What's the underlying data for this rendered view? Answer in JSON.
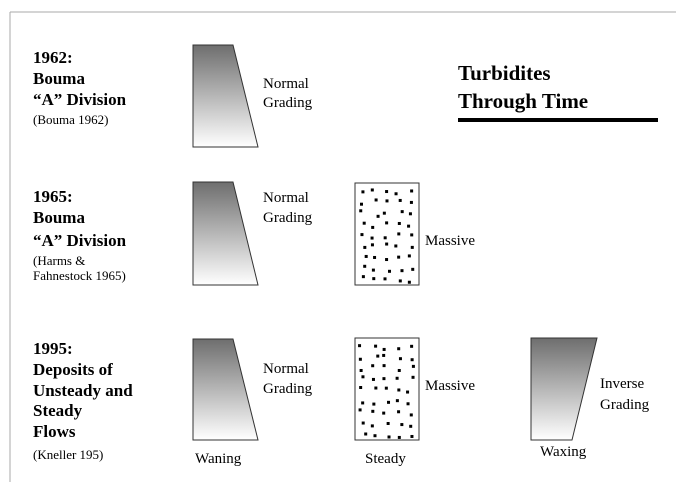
{
  "title": [
    "Turbidites",
    "Through Time"
  ],
  "rows": [
    {
      "heading": [
        "1962:",
        "Bouma",
        "“A” Division"
      ],
      "citation": [
        "(Bouma 1962)"
      ],
      "grading": [
        "Normal",
        "Grading"
      ]
    },
    {
      "heading": [
        "1965:",
        "Bouma",
        "“A” Division"
      ],
      "citation": [
        "(Harms &",
        "Fahnestock 1965)"
      ],
      "grading": [
        "Normal",
        "Grading"
      ],
      "massive": "Massive"
    },
    {
      "heading": [
        "1995:",
        "Deposits of",
        "Unsteady and",
        "Steady",
        "Flows"
      ],
      "citation": [
        "(Kneller 195)"
      ],
      "grading": [
        "Normal",
        "Grading"
      ],
      "massive": "Massive",
      "waning": "Waning",
      "steady": "Steady",
      "inverse": [
        "Inverse",
        "Grading"
      ],
      "waxing": "Waxing"
    }
  ]
}
